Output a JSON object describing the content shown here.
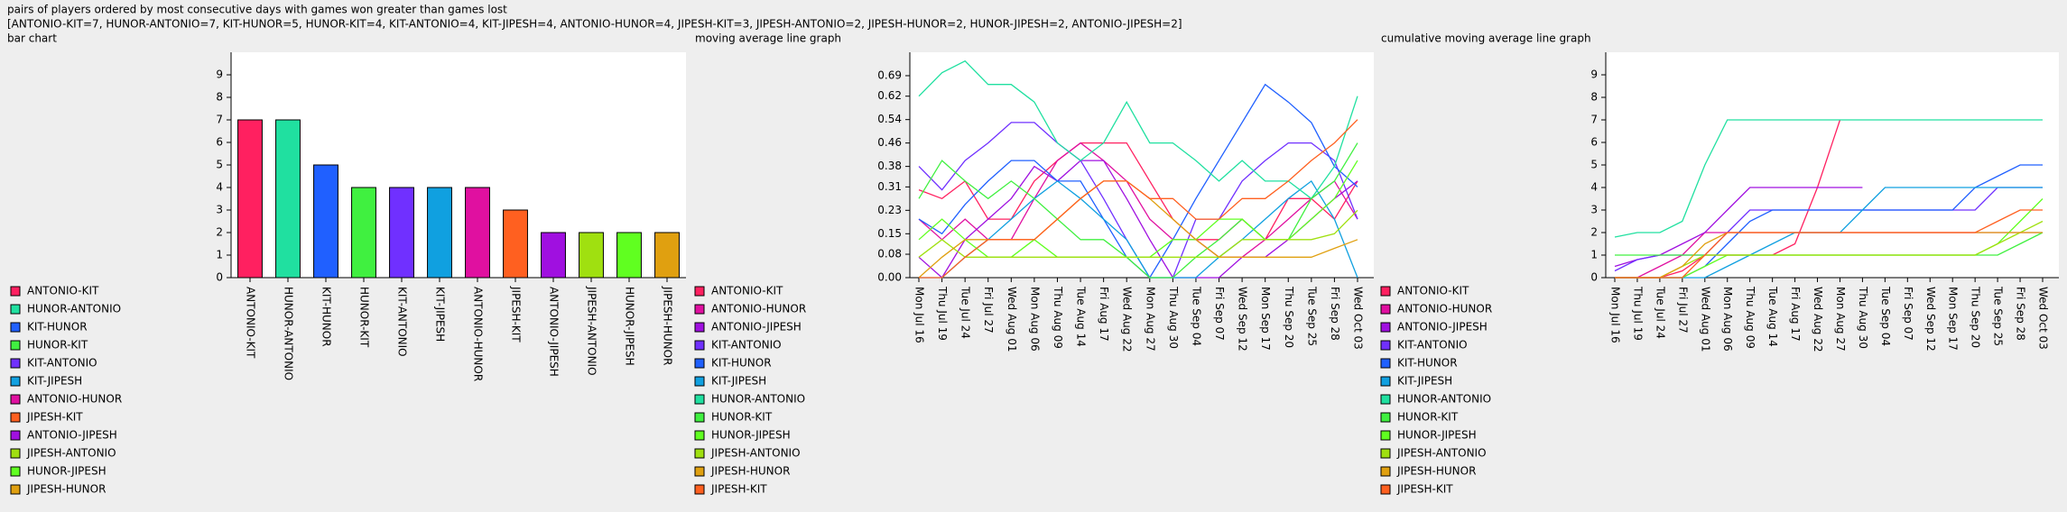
{
  "title": "pairs of players ordered by most consecutive days with games won greater than games lost",
  "summary": "[ANTONIO-KIT=7, HUNOR-ANTONIO=7, KIT-HUNOR=5, HUNOR-KIT=4, KIT-ANTONIO=4, KIT-JIPESH=4, ANTONIO-HUNOR=4, JIPESH-KIT=3, JIPESH-ANTONIO=2, JIPESH-HUNOR=2, HUNOR-JIPESH=2, ANTONIO-JIPESH=2]",
  "chart_data": [
    {
      "type": "bar",
      "title": "bar chart",
      "categories": [
        "ANTONIO-KIT",
        "HUNOR-ANTONIO",
        "KIT-HUNOR",
        "HUNOR-KIT",
        "KIT-ANTONIO",
        "KIT-JIPESH",
        "ANTONIO-HUNOR",
        "JIPESH-KIT",
        "ANTONIO-JIPESH",
        "JIPESH-ANTONIO",
        "HUNOR-JIPESH",
        "JIPESH-HUNOR"
      ],
      "values": [
        7,
        7,
        5,
        4,
        4,
        4,
        4,
        3,
        2,
        2,
        2,
        2
      ],
      "colors": [
        "#ff2060",
        "#20e0a0",
        "#2060ff",
        "#40f040",
        "#7030ff",
        "#10a0e0",
        "#e010a0",
        "#ff6020",
        "#a010e0",
        "#a0e010",
        "#60ff20",
        "#e0a010"
      ],
      "ylim": [
        0,
        10
      ],
      "yticks": [
        0,
        1,
        2,
        3,
        4,
        5,
        6,
        7,
        8,
        9
      ],
      "legend": "bottom-left"
    },
    {
      "type": "line",
      "title": "moving average line graph",
      "categories": [
        "Mon Jul 16",
        "Thu Jul 19",
        "Tue Jul 24",
        "Fri Jul 27",
        "Wed Aug 01",
        "Mon Aug 06",
        "Thu Aug 09",
        "Tue Aug 14",
        "Fri Aug 17",
        "Wed Aug 22",
        "Mon Aug 27",
        "Thu Aug 30",
        "Tue Sep 04",
        "Fri Sep 07",
        "Wed Sep 12",
        "Mon Sep 17",
        "Thu Sep 20",
        "Tue Sep 25",
        "Fri Sep 28",
        "Wed Oct 03"
      ],
      "ylim": [
        0,
        0.77
      ],
      "yticks": [
        {
          "value": 0,
          "label": "0.00"
        },
        0.08,
        0.15,
        0.23,
        0.31,
        0.38,
        0.46,
        0.54,
        0.62,
        0.69
      ],
      "legend": "bottom-left",
      "series": [
        {
          "name": "ANTONIO-KIT",
          "color": "#ff2060",
          "values": [
            0.3,
            0.27,
            0.33,
            0.2,
            0.2,
            0.33,
            0.4,
            0.46,
            0.46,
            0.46,
            0.33,
            0.2,
            0.13,
            0.13,
            0.2,
            0.13,
            0.27,
            0.27,
            0.2,
            0.33
          ]
        },
        {
          "name": "ANTONIO-HUNOR",
          "color": "#e010a0",
          "values": [
            0.2,
            0.13,
            0.2,
            0.13,
            0.13,
            0.27,
            0.4,
            0.46,
            0.4,
            0.33,
            0.2,
            0.13,
            0.13,
            0.07,
            0.07,
            0.13,
            0.2,
            0.27,
            0.33,
            0.2
          ]
        },
        {
          "name": "ANTONIO-JIPESH",
          "color": "#a010e0",
          "values": [
            0.07,
            0,
            0.13,
            0.2,
            0.27,
            0.38,
            0.33,
            0.4,
            0.4,
            0.27,
            0.13,
            0,
            0,
            0,
            0.07,
            0.07,
            0.13,
            0.2,
            0.27,
            0.33
          ]
        },
        {
          "name": "KIT-ANTONIO",
          "color": "#7030ff",
          "values": [
            0.38,
            0.3,
            0.4,
            0.46,
            0.53,
            0.53,
            0.46,
            0.4,
            0.27,
            0.13,
            0,
            0,
            0.2,
            0.2,
            0.33,
            0.4,
            0.46,
            0.46,
            0.4,
            0.2
          ]
        },
        {
          "name": "KIT-HUNOR",
          "color": "#2060ff",
          "values": [
            0.2,
            0.15,
            0.25,
            0.33,
            0.4,
            0.4,
            0.33,
            0.33,
            0.2,
            0.07,
            0,
            0.13,
            0.27,
            0.4,
            0.53,
            0.66,
            0.6,
            0.53,
            0.38,
            0.31
          ]
        },
        {
          "name": "KIT-JIPESH",
          "color": "#10a0e0",
          "values": [
            0,
            0,
            0.07,
            0.13,
            0.2,
            0.27,
            0.33,
            0.27,
            0.2,
            0.13,
            0,
            0,
            0,
            0.07,
            0.13,
            0.2,
            0.27,
            0.33,
            0.2,
            0
          ]
        },
        {
          "name": "HUNOR-ANTONIO",
          "color": "#20e0a0",
          "values": [
            0.62,
            0.7,
            0.74,
            0.66,
            0.66,
            0.6,
            0.46,
            0.4,
            0.46,
            0.6,
            0.46,
            0.46,
            0.4,
            0.33,
            0.4,
            0.33,
            0.33,
            0.27,
            0.38,
            0.62
          ]
        },
        {
          "name": "HUNOR-KIT",
          "color": "#40f040",
          "values": [
            0.27,
            0.4,
            0.33,
            0.27,
            0.33,
            0.27,
            0.2,
            0.13,
            0.13,
            0.07,
            0,
            0,
            0.07,
            0.13,
            0.2,
            0.13,
            0.13,
            0.27,
            0.33,
            0.46
          ]
        },
        {
          "name": "HUNOR-JIPESH",
          "color": "#60ff20",
          "values": [
            0.13,
            0.2,
            0.13,
            0.07,
            0.07,
            0.13,
            0.07,
            0.07,
            0.07,
            0.07,
            0.07,
            0.13,
            0.13,
            0.2,
            0.2,
            0.13,
            0.13,
            0.2,
            0.27,
            0.4
          ]
        },
        {
          "name": "JIPESH-ANTONIO",
          "color": "#a0e010",
          "values": [
            0.07,
            0.13,
            0.07,
            0.07,
            0.07,
            0.07,
            0.07,
            0.07,
            0.07,
            0.07,
            0.07,
            0.07,
            0.07,
            0.07,
            0.13,
            0.13,
            0.13,
            0.13,
            0.15,
            0.23
          ]
        },
        {
          "name": "JIPESH-HUNOR",
          "color": "#e0a010",
          "values": [
            0,
            0.07,
            0.13,
            0.13,
            0.13,
            0.13,
            0.2,
            0.27,
            0.33,
            0.33,
            0.27,
            0.2,
            0.13,
            0.07,
            0.07,
            0.07,
            0.07,
            0.07,
            0.1,
            0.13
          ]
        },
        {
          "name": "JIPESH-KIT",
          "color": "#ff6020",
          "values": [
            0,
            0,
            0.07,
            0.13,
            0.13,
            0.13,
            0.2,
            0.27,
            0.33,
            0.33,
            0.27,
            0.27,
            0.2,
            0.2,
            0.27,
            0.27,
            0.33,
            0.4,
            0.46,
            0.54
          ]
        }
      ]
    },
    {
      "type": "line",
      "title": "cumulative moving average line graph",
      "categories": [
        "Mon Jul 16",
        "Thu Jul 19",
        "Tue Jul 24",
        "Fri Jul 27",
        "Wed Aug 01",
        "Mon Aug 06",
        "Thu Aug 09",
        "Tue Aug 14",
        "Fri Aug 17",
        "Wed Aug 22",
        "Mon Aug 27",
        "Thu Aug 30",
        "Tue Sep 04",
        "Fri Sep 07",
        "Wed Sep 12",
        "Mon Sep 17",
        "Thu Sep 20",
        "Tue Sep 25",
        "Fri Sep 28",
        "Wed Oct 03"
      ],
      "ylim": [
        0,
        10
      ],
      "yticks": [
        0,
        1,
        2,
        3,
        4,
        5,
        6,
        7,
        8,
        9
      ],
      "legend": "bottom-left",
      "series": [
        {
          "name": "ANTONIO-KIT",
          "color": "#ff2060",
          "values": [
            0,
            0,
            0,
            0.3,
            1,
            1,
            1,
            1,
            1.5,
            4,
            7,
            null,
            null,
            null,
            null,
            null,
            null,
            null,
            null,
            null
          ]
        },
        {
          "name": "ANTONIO-HUNOR",
          "color": "#e010a0",
          "values": [
            0,
            0,
            0.5,
            1,
            2,
            2,
            2,
            2,
            2,
            2,
            2,
            2,
            2,
            2,
            2,
            2,
            2,
            2,
            2,
            2
          ]
        },
        {
          "name": "ANTONIO-JIPESH",
          "color": "#a010e0",
          "values": [
            0.5,
            0.8,
            1,
            1.5,
            2,
            3,
            4,
            4,
            4,
            4,
            4,
            4,
            null,
            null,
            null,
            null,
            null,
            null,
            null,
            null
          ]
        },
        {
          "name": "KIT-ANTONIO",
          "color": "#7030ff",
          "values": [
            0.3,
            0.8,
            1,
            1,
            1,
            2,
            3,
            3,
            3,
            3,
            3,
            3,
            3,
            3,
            3,
            3,
            3,
            4,
            4,
            4
          ]
        },
        {
          "name": "KIT-HUNOR",
          "color": "#2060ff",
          "values": [
            0,
            0,
            0,
            0,
            0.5,
            1.5,
            2.5,
            3,
            3,
            3,
            3,
            3,
            3,
            3,
            3,
            3,
            4,
            4.5,
            5,
            5
          ]
        },
        {
          "name": "KIT-JIPESH",
          "color": "#10a0e0",
          "values": [
            0,
            0,
            0,
            0,
            0,
            0.5,
            1,
            1.5,
            2,
            2,
            2,
            3,
            4,
            4,
            4,
            4,
            4,
            4,
            4,
            4
          ]
        },
        {
          "name": "HUNOR-ANTONIO",
          "color": "#20e0a0",
          "values": [
            1.8,
            2,
            2,
            2.5,
            5,
            7,
            7,
            7,
            7,
            7,
            7,
            7,
            7,
            7,
            7,
            7,
            7,
            7,
            7,
            7
          ]
        },
        {
          "name": "HUNOR-KIT",
          "color": "#40f040",
          "values": [
            1,
            1,
            1,
            1,
            1,
            1,
            1,
            1,
            1,
            1,
            1,
            1,
            1,
            1,
            1,
            1,
            1,
            1,
            1.5,
            2
          ]
        },
        {
          "name": "HUNOR-JIPESH",
          "color": "#60ff20",
          "values": [
            0,
            0,
            0,
            0,
            0.5,
            1,
            1,
            1,
            1,
            1,
            1,
            1,
            1,
            1,
            1,
            1,
            1,
            1.5,
            2.5,
            3.5
          ]
        },
        {
          "name": "JIPESH-ANTONIO",
          "color": "#a0e010",
          "values": [
            0,
            0,
            0,
            0.5,
            1,
            1,
            1,
            1,
            1,
            1,
            1,
            1,
            1,
            1,
            1,
            1,
            1,
            1.5,
            2,
            2.5
          ]
        },
        {
          "name": "JIPESH-HUNOR",
          "color": "#e0a010",
          "values": [
            0,
            0,
            0,
            0.5,
            1.5,
            2,
            2,
            2,
            2,
            2,
            2,
            2,
            2,
            2,
            2,
            2,
            2,
            2,
            2,
            2
          ]
        },
        {
          "name": "JIPESH-KIT",
          "color": "#ff6020",
          "values": [
            0,
            0,
            0,
            0,
            1,
            2,
            2,
            2,
            2,
            2,
            2,
            2,
            2,
            2,
            2,
            2,
            2,
            2.5,
            3,
            3
          ]
        }
      ]
    }
  ]
}
